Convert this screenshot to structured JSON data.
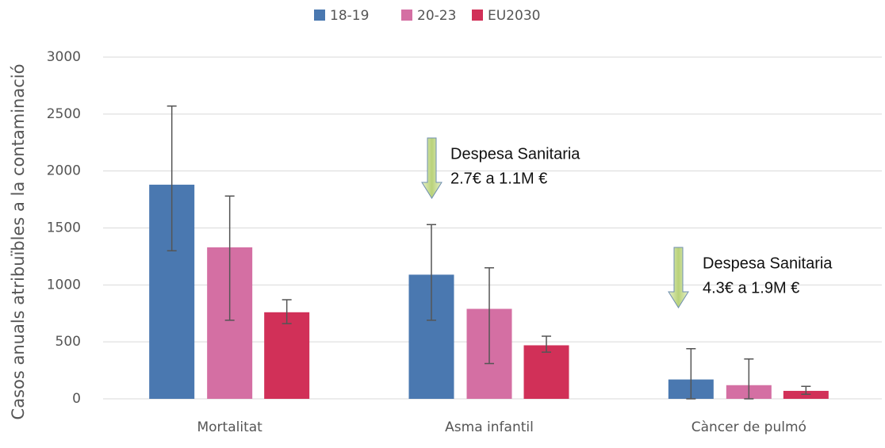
{
  "chart_data": {
    "type": "bar",
    "y_label": "Casos anuals atribuïbles a la contaminació",
    "categories": [
      "Mortalitat",
      "Asma infantil",
      "Càncer de pulmó"
    ],
    "series": [
      {
        "name": "18-19",
        "color": "#4a78b0",
        "values": [
          1880,
          1090,
          170
        ],
        "lower": [
          1300,
          690,
          0
        ],
        "upper": [
          2570,
          1530,
          440
        ]
      },
      {
        "name": "20-23",
        "color": "#d46fa3",
        "values": [
          1330,
          790,
          120
        ],
        "lower": [
          690,
          310,
          0
        ],
        "upper": [
          1780,
          1150,
          350
        ]
      },
      {
        "name": "EU2030",
        "color": "#d13058",
        "values": [
          760,
          470,
          70
        ],
        "lower": [
          660,
          410,
          40
        ],
        "upper": [
          870,
          550,
          110
        ]
      }
    ],
    "ylim": [
      0,
      3000
    ],
    "yticks": [
      0,
      500,
      1000,
      1500,
      2000,
      2500,
      3000
    ],
    "grid": true,
    "legend": "top",
    "annotations": [
      [
        "Despesa Sanitaria",
        "2.7€ a 1.1M €"
      ],
      [
        "Despesa Sanitaria",
        "4.3€ a 1.9M €"
      ]
    ]
  }
}
